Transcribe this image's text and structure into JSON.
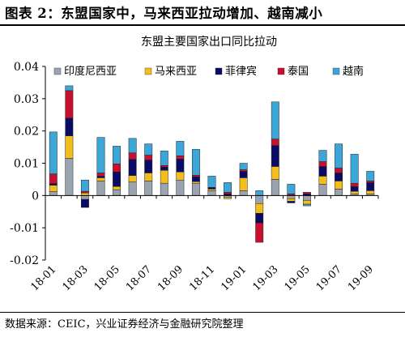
{
  "figure": {
    "title": "图表 2：东盟国家中，马来西亚拉动增加、越南减小",
    "source": "数据来源：CEIC，兴业证券经济与金融研究院整理"
  },
  "chart_data": {
    "type": "bar",
    "stacked": true,
    "title": "东盟主要国家出口同比拉动",
    "xlabel": "",
    "ylabel": "",
    "ylim": [
      -0.02,
      0.04
    ],
    "yticks": [
      "-0.02",
      "-0.01",
      "0",
      "0.01",
      "0.02",
      "0.03",
      "0.04"
    ],
    "ytick_values": [
      -0.02,
      -0.01,
      0,
      0.01,
      0.02,
      0.03,
      0.04
    ],
    "grid": false,
    "legend_position": "top",
    "categories": [
      "18-01",
      "18-02",
      "18-03",
      "18-04",
      "18-05",
      "18-06",
      "18-07",
      "18-08",
      "18-09",
      "18-10",
      "18-11",
      "18-12",
      "19-01",
      "19-02",
      "19-03",
      "19-04",
      "19-05",
      "19-06",
      "19-07",
      "19-08",
      "19-09"
    ],
    "tick_labels": [
      "18-01",
      "",
      "18-03",
      "",
      "18-05",
      "",
      "18-07",
      "",
      "18-09",
      "",
      "18-11",
      "",
      "19-01",
      "",
      "19-03",
      "",
      "19-05",
      "",
      "19-07",
      "",
      "19-09"
    ],
    "series": [
      {
        "name": "印度尼西亚",
        "color": "#9aa4b1",
        "values": [
          0.0012,
          0.0115,
          -0.0012,
          0.0045,
          0.0018,
          0.0042,
          0.0045,
          0.0038,
          0.0048,
          0.0038,
          0.0015,
          -0.0005,
          0.0015,
          -0.0025,
          0.005,
          -0.001,
          -0.0015,
          0.0035,
          0.002,
          0.0005,
          0.0005
        ]
      },
      {
        "name": "马来西亚",
        "color": "#f3be1c",
        "values": [
          0.002,
          0.007,
          0.0008,
          0.001,
          0.001,
          0.002,
          0.0025,
          0.004,
          0.0025,
          0.0005,
          0.0005,
          -0.0005,
          0.004,
          -0.003,
          0.004,
          -0.0008,
          -0.0012,
          0.0025,
          0.0025,
          0.0008,
          0.001
        ]
      },
      {
        "name": "菲律宾",
        "color": "#0a0b66",
        "values": [
          0.0005,
          0.0055,
          -0.0025,
          0.0005,
          0.0045,
          0.005,
          0.004,
          0.001,
          0.004,
          0.0015,
          0.0005,
          0.0005,
          0.002,
          -0.003,
          0.0065,
          -0.0005,
          0.0005,
          0.003,
          0.0025,
          0.0015,
          0.0025
        ]
      },
      {
        "name": "泰国",
        "color": "#c8102e",
        "values": [
          0.003,
          0.0085,
          0.0005,
          0.001,
          0.0025,
          0.002,
          0.0015,
          0.0005,
          0.001,
          0.0005,
          0.0,
          0.0005,
          0.0005,
          -0.006,
          0.002,
          0.0005,
          0.0005,
          0.0015,
          0.0015,
          0.001,
          0.0005
        ]
      },
      {
        "name": "越南",
        "color": "#3da6d9",
        "values": [
          0.013,
          0.0015,
          0.0035,
          0.011,
          0.0055,
          0.0045,
          0.0035,
          0.0045,
          0.0045,
          0.008,
          0.0035,
          0.003,
          0.002,
          0.0015,
          0.0115,
          0.003,
          -0.0005,
          0.0035,
          0.0075,
          0.009,
          0.003
        ]
      }
    ]
  }
}
